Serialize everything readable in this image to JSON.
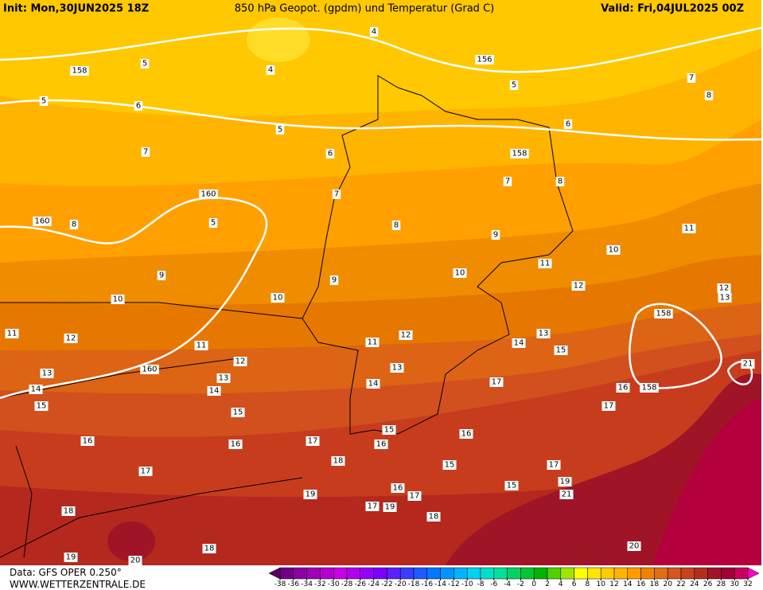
{
  "header": {
    "init": "Init: Mon,30JUN2025 18Z",
    "title": "850 hPa Geopot. (gpdm) und Temperatur (Grad C)",
    "valid": "Valid: Fri,04JUL2025 00Z"
  },
  "footer": {
    "data": "Data: GFS OPER 0.250°",
    "site": "WWW.WETTERZENTRALE.DE"
  },
  "contour_labels": [
    "4",
    "4",
    "5",
    "5",
    "5",
    "5",
    "6",
    "6",
    "6",
    "7",
    "7",
    "7",
    "7",
    "8",
    "8",
    "8",
    "8",
    "5",
    "9",
    "9",
    "9",
    "10",
    "10",
    "10",
    "10",
    "11",
    "11",
    "11",
    "11",
    "11",
    "12",
    "12",
    "12",
    "12",
    "12",
    "13",
    "13",
    "13",
    "13",
    "13",
    "14",
    "14",
    "14",
    "14",
    "15",
    "15",
    "15",
    "15",
    "15",
    "15",
    "16",
    "16",
    "16",
    "16",
    "16",
    "16",
    "17",
    "17",
    "17",
    "17",
    "17",
    "17",
    "17",
    "18",
    "18",
    "18",
    "18",
    "19",
    "19",
    "19",
    "19",
    "20",
    "20",
    "21",
    "21",
    "156",
    "158",
    "158",
    "158",
    "158",
    "160",
    "160",
    "160"
  ],
  "colorbar": {
    "ticks": [
      -38,
      -36,
      -34,
      -32,
      -30,
      -28,
      -26,
      -24,
      -22,
      -20,
      -18,
      -16,
      -14,
      -12,
      -10,
      -8,
      -6,
      -4,
      -2,
      0,
      2,
      4,
      6,
      8,
      10,
      12,
      14,
      16,
      18,
      20,
      22,
      24,
      26,
      28,
      30,
      32
    ],
    "colors": [
      "#5a0064",
      "#6e0082",
      "#8a00a0",
      "#a000b8",
      "#b400d0",
      "#c800e6",
      "#b000f0",
      "#9600ff",
      "#7a00ff",
      "#5a20ff",
      "#3c3cff",
      "#1e5aff",
      "#0078ff",
      "#0096ff",
      "#00b4ff",
      "#00d2f0",
      "#00e0c8",
      "#00e096",
      "#00d264",
      "#00c832",
      "#00b400",
      "#50d200",
      "#a0e600",
      "#ffff00",
      "#ffe600",
      "#ffcc00",
      "#ffb400",
      "#ff9c00",
      "#f08200",
      "#e06e14",
      "#d2581e",
      "#c8421e",
      "#b42c1e",
      "#a0142a",
      "#a00032",
      "#c8005a",
      "#e6008c",
      "#ff00c8"
    ]
  }
}
